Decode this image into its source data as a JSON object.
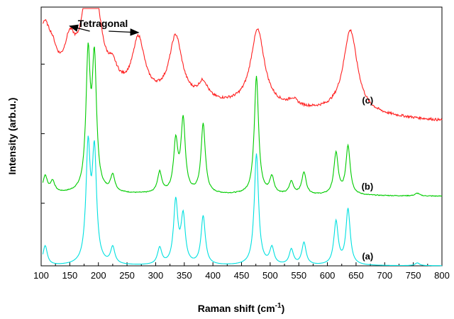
{
  "chart_data": {
    "type": "line",
    "title": "",
    "xlabel_main": "Raman shift (cm",
    "xlabel_sup": "-1",
    "xlabel_close": ")",
    "ylabel": "Intensity (arb.u.)",
    "xlim": [
      100,
      800
    ],
    "x_ticks": [
      100,
      150,
      200,
      250,
      300,
      350,
      400,
      450,
      500,
      550,
      600,
      650,
      700,
      750,
      800
    ],
    "y_ticks_shown": false,
    "annotation": {
      "text": "Tetragonal",
      "points_to_x": [
        150,
        270
      ]
    },
    "series": [
      {
        "label": "(a)",
        "color": "#00e0e0",
        "offset": 0.0,
        "peaks": [
          [
            107,
            0.14
          ],
          [
            182,
            0.82
          ],
          [
            193,
            0.78
          ],
          [
            225,
            0.12
          ],
          [
            307,
            0.12
          ],
          [
            335,
            0.45
          ],
          [
            348,
            0.34
          ],
          [
            383,
            0.35
          ],
          [
            476,
            0.8
          ],
          [
            503,
            0.12
          ],
          [
            537,
            0.11
          ],
          [
            559,
            0.16
          ],
          [
            615,
            0.31
          ],
          [
            636,
            0.4
          ],
          [
            757,
            0.02
          ]
        ],
        "baseline_points": [
          [
            100,
            0.0
          ],
          [
            800,
            0.0
          ]
        ]
      },
      {
        "label": "(b)",
        "color": "#00cc00",
        "offset": 0.5,
        "peaks": [
          [
            107,
            0.12
          ],
          [
            120,
            0.08
          ],
          [
            182,
            0.95
          ],
          [
            193,
            0.92
          ],
          [
            225,
            0.12
          ],
          [
            307,
            0.15
          ],
          [
            335,
            0.36
          ],
          [
            348,
            0.52
          ],
          [
            383,
            0.5
          ],
          [
            476,
            0.85
          ],
          [
            503,
            0.12
          ],
          [
            537,
            0.09
          ],
          [
            559,
            0.16
          ],
          [
            615,
            0.3
          ],
          [
            636,
            0.35
          ],
          [
            757,
            0.02
          ]
        ],
        "baseline_points": [
          [
            100,
            0.02
          ],
          [
            800,
            0.0
          ]
        ]
      },
      {
        "label": "(c)",
        "color": "#ff2020",
        "offset": 1.04,
        "peaks": [
          [
            105,
            0.42
          ],
          [
            120,
            0.15
          ],
          [
            150,
            0.28
          ],
          [
            182,
            0.52
          ],
          [
            193,
            0.52
          ],
          [
            225,
            0.12
          ],
          [
            270,
            0.4
          ],
          [
            335,
            0.45
          ],
          [
            383,
            0.12
          ],
          [
            478,
            0.55
          ],
          [
            540,
            0.05
          ],
          [
            640,
            0.6
          ]
        ],
        "baseline_points": [
          [
            100,
            0.2
          ],
          [
            800,
            0.0
          ]
        ]
      }
    ]
  }
}
